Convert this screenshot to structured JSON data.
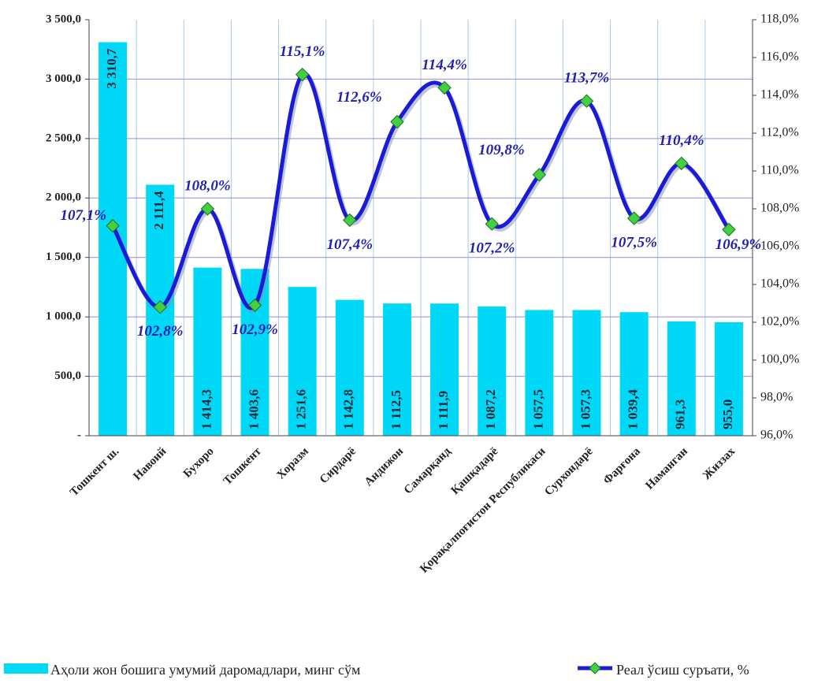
{
  "chart_data": {
    "type": "bar",
    "categories": [
      "Тошкент ш.",
      "Навоий",
      "Бухоро",
      "Тошкент",
      "Хоразм",
      "Сирдарё",
      "Андижон",
      "Самарқанд",
      "Қашқадарё",
      "Қорақалпоғистон Республикаси",
      "Сурхондарё",
      "Фарғона",
      "Наманган",
      "Жиззах"
    ],
    "series": [
      {
        "name": "Аҳоли жон бошига умумий даромадлари, минг сўм",
        "color": "#00d8f8",
        "values": [
          3310.7,
          2111.4,
          1414.3,
          1403.6,
          1251.6,
          1142.8,
          1112.5,
          1111.9,
          1087.2,
          1057.5,
          1057.3,
          1039.4,
          961.3,
          955.0
        ],
        "value_labels": [
          "3 310,7",
          "2 111,4",
          "1 414,3",
          "1 403,6",
          "1 251,6",
          "1 142,8",
          "1 112,5",
          "1 111,9",
          "1 087,2",
          "1 057,5",
          "1 057,3",
          "1 039,4",
          "961,3",
          "955,0"
        ]
      },
      {
        "name": "Реал ўсиш суръати, %",
        "color": "#1a1ad8",
        "type": "line",
        "axis": "y2",
        "marker_color": "#40d040",
        "values": [
          107.1,
          102.8,
          108.0,
          102.9,
          115.1,
          107.4,
          112.6,
          114.4,
          107.2,
          109.8,
          113.7,
          107.5,
          110.4,
          106.9
        ],
        "value_labels": [
          "107,1%",
          "102,8%",
          "108,0%",
          "102,9%",
          "115,1%",
          "107,4%",
          "112,6%",
          "114,4%",
          "107,2%",
          "109,8%",
          "113,7%",
          "107,5%",
          "110,4%",
          "106,9%"
        ]
      }
    ],
    "ylim": [
      0,
      3500
    ],
    "yticks": [
      {
        "value": 0,
        "label": "-"
      },
      {
        "value": 500,
        "label": "500,0"
      },
      {
        "value": 1000,
        "label": "1 000,0"
      },
      {
        "value": 1500,
        "label": "1 500,0"
      },
      {
        "value": 2000,
        "label": "2 000,0"
      },
      {
        "value": 2500,
        "label": "2 500,0"
      },
      {
        "value": 3000,
        "label": "3 000,0"
      },
      {
        "value": 3500,
        "label": "3 500,0"
      }
    ],
    "y2lim": [
      96,
      118
    ],
    "y2ticks": [
      {
        "value": 96,
        "label": "96,0%"
      },
      {
        "value": 98,
        "label": "98,0%"
      },
      {
        "value": 100,
        "label": "100,0%"
      },
      {
        "value": 102,
        "label": "102,0%"
      },
      {
        "value": 104,
        "label": "104,0%"
      },
      {
        "value": 106,
        "label": "106,0%"
      },
      {
        "value": 108,
        "label": "108,0%"
      },
      {
        "value": 110,
        "label": "110,0%"
      },
      {
        "value": 112,
        "label": "112,0%"
      },
      {
        "value": 114,
        "label": "114,0%"
      },
      {
        "value": 116,
        "label": "116,0%"
      },
      {
        "value": 118,
        "label": "118,0%"
      }
    ],
    "grid": true,
    "legend": "bottom"
  }
}
